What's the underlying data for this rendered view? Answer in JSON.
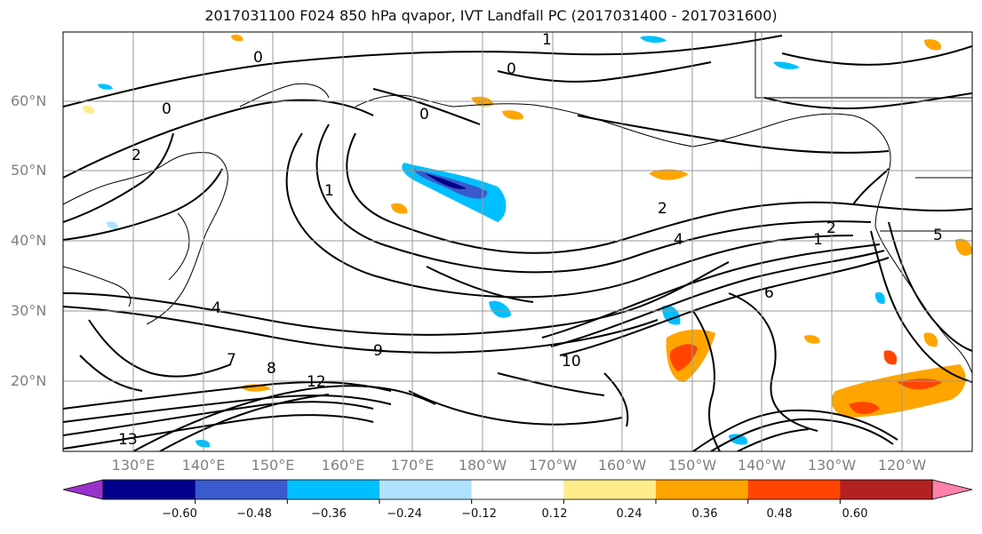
{
  "title": "2017031100 F024 850 hPa qvapor, IVT Landfall PC (2017031400 - 2017031600)",
  "lat_labels": [
    "60°N",
    "50°N",
    "40°N",
    "30°N",
    "20°N"
  ],
  "lon_labels": [
    "130°E",
    "140°E",
    "150°E",
    "160°E",
    "170°E",
    "180°W",
    "170°W",
    "160°W",
    "150°W",
    "140°W",
    "130°W",
    "120°W"
  ],
  "colorbar": {
    "colors": [
      "#9932cc",
      "#00008b",
      "#3a5acd",
      "#00bfff",
      "#b0e2ff",
      "#ffffff",
      "#ffec8b",
      "#ffa500",
      "#ff4500",
      "#b22222",
      "#ff82ab"
    ],
    "tick_labels": [
      "−0.60",
      "−0.48",
      "−0.36",
      "−0.24",
      "−0.12",
      "0.12",
      "0.24",
      "0.36",
      "0.48",
      "0.60"
    ]
  },
  "contour_labels": [
    "0",
    "0",
    "0",
    "0",
    "1",
    "1",
    "1",
    "2",
    "2",
    "2",
    "4",
    "4",
    "5",
    "6",
    "7",
    "8",
    "9",
    "10",
    "12",
    "13"
  ]
}
